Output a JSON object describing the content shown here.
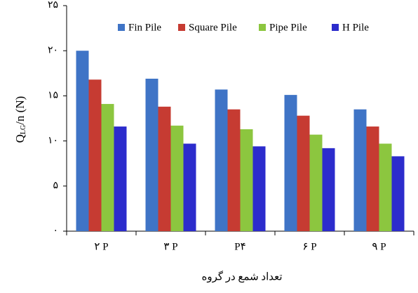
{
  "chart_data": {
    "type": "bar",
    "y_label": {
      "main": "Q",
      "sub": "LG",
      "rest": "/n (N)"
    },
    "x_label": "تعداد شمع در گروه",
    "categories": [
      "۲ P",
      "۳ P",
      "P۴",
      "۶ P",
      "۹ P"
    ],
    "series": [
      {
        "name": "Fin Pile",
        "color": "#3f74c6",
        "values": [
          20,
          16.9,
          15.7,
          15.1,
          13.5
        ]
      },
      {
        "name": "Square Pile",
        "color": "#c63b32",
        "values": [
          16.8,
          13.8,
          13.5,
          12.8,
          11.6
        ]
      },
      {
        "name": "Pipe Pile",
        "color": "#8cc63f",
        "values": [
          14.1,
          11.7,
          11.3,
          10.7,
          9.7
        ]
      },
      {
        "name": "H Pile",
        "color": "#2c2ccc",
        "values": [
          11.6,
          9.7,
          9.4,
          9.2,
          8.3
        ]
      }
    ],
    "ylim": [
      0,
      25
    ],
    "yticks": [
      {
        "value": 0,
        "label": "۰"
      },
      {
        "value": 5,
        "label": "۵"
      },
      {
        "value": 10,
        "label": "۱۰"
      },
      {
        "value": 15,
        "label": "۱۵"
      },
      {
        "value": 20,
        "label": "۲۰"
      },
      {
        "value": 25,
        "label": "۲۵"
      }
    ],
    "legend": "top"
  }
}
